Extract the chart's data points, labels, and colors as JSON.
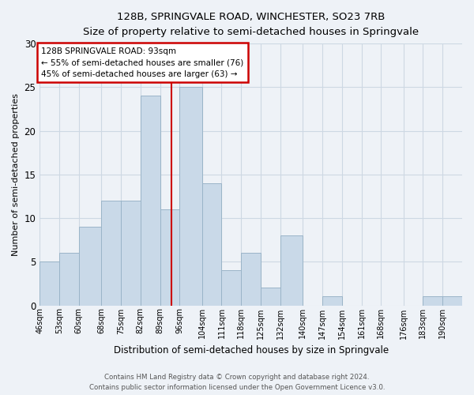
{
  "title": "128B, SPRINGVALE ROAD, WINCHESTER, SO23 7RB",
  "subtitle": "Size of property relative to semi-detached houses in Springvale",
  "xlabel": "Distribution of semi-detached houses by size in Springvale",
  "ylabel": "Number of semi-detached properties",
  "bin_labels": [
    "46sqm",
    "53sqm",
    "60sqm",
    "68sqm",
    "75sqm",
    "82sqm",
    "89sqm",
    "96sqm",
    "104sqm",
    "111sqm",
    "118sqm",
    "125sqm",
    "132sqm",
    "140sqm",
    "147sqm",
    "154sqm",
    "161sqm",
    "168sqm",
    "176sqm",
    "183sqm",
    "190sqm"
  ],
  "bar_values": [
    5,
    6,
    9,
    12,
    12,
    24,
    11,
    25,
    14,
    4,
    6,
    2,
    8,
    0,
    1,
    0,
    0,
    0,
    0,
    1,
    1
  ],
  "bar_color": "#c9d9e8",
  "bar_edge_color": "#9ab4c8",
  "grid_color": "#cdd8e3",
  "bg_color": "#eef2f7",
  "marker_value": 93,
  "marker_color": "#cc0000",
  "annotation_title": "128B SPRINGVALE ROAD: 93sqm",
  "annotation_line1": "← 55% of semi-detached houses are smaller (76)",
  "annotation_line2": "45% of semi-detached houses are larger (63) →",
  "annotation_box_color": "#ffffff",
  "annotation_box_edge": "#cc0000",
  "ylim": [
    0,
    30
  ],
  "yticks": [
    0,
    5,
    10,
    15,
    20,
    25,
    30
  ],
  "footer_line1": "Contains HM Land Registry data © Crown copyright and database right 2024.",
  "footer_line2": "Contains public sector information licensed under the Open Government Licence v3.0.",
  "bin_edges": [
    46,
    53,
    60,
    68,
    75,
    82,
    89,
    96,
    104,
    111,
    118,
    125,
    132,
    140,
    147,
    154,
    161,
    168,
    176,
    183,
    190,
    197
  ]
}
